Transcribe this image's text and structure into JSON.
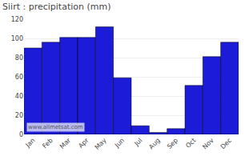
{
  "chart_data": {
    "type": "bar",
    "title": "Siirt : precipitation (mm)",
    "categories": [
      "Jan",
      "Feb",
      "Mar",
      "Apr",
      "May",
      "Jun",
      "Jul",
      "Aug",
      "Sep",
      "Oct",
      "Nov",
      "Dec"
    ],
    "values": [
      90,
      96,
      101,
      101,
      112,
      59,
      9,
      2,
      6,
      51,
      81,
      96
    ],
    "color": "#1c1cd8",
    "ylim": [
      0,
      120
    ],
    "yticks": [
      0,
      20,
      40,
      60,
      80,
      100,
      120
    ],
    "grid": true,
    "annotation": "www.allmetsat.com"
  }
}
